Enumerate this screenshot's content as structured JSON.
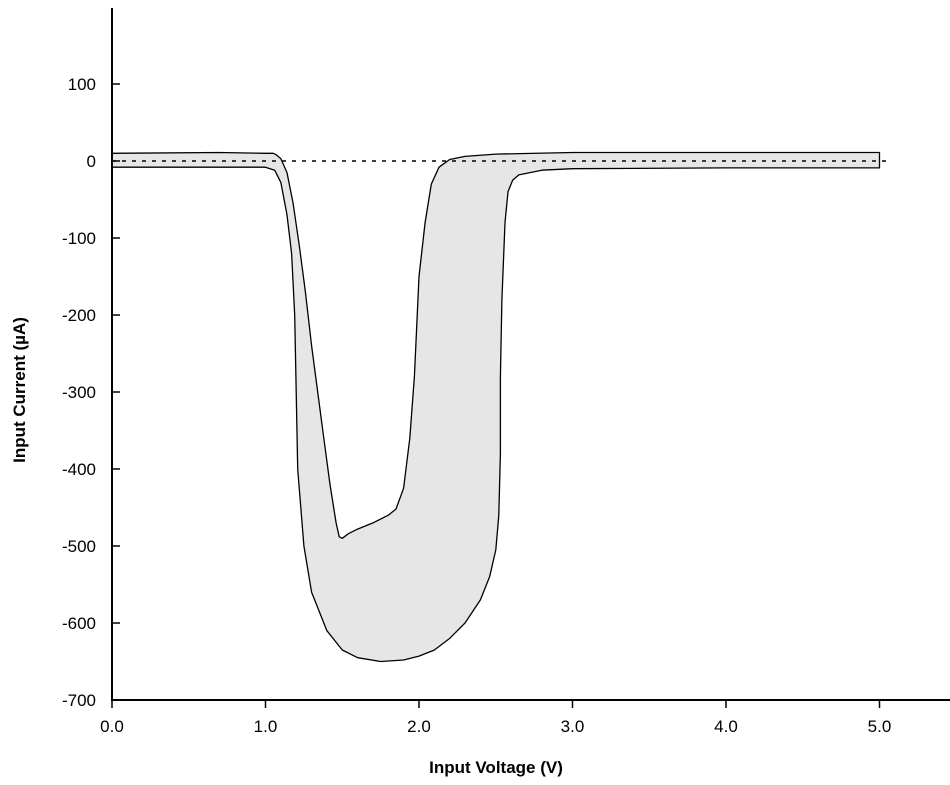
{
  "chart_data": {
    "type": "area",
    "title": "",
    "xlabel": "Input Voltage (V)",
    "ylabel": "Input Current (µA)",
    "xlim": [
      0,
      5.2
    ],
    "ylim": [
      -700,
      200
    ],
    "x_ticks": [
      {
        "value": 0,
        "label": "0.0"
      },
      {
        "value": 1,
        "label": "1.0"
      },
      {
        "value": 2,
        "label": "2.0"
      },
      {
        "value": 3,
        "label": "3.0"
      },
      {
        "value": 4,
        "label": "4.0"
      },
      {
        "value": 5,
        "label": "5.0"
      }
    ],
    "y_ticks": [
      {
        "value": 100,
        "label": "100"
      },
      {
        "value": 0,
        "label": "0"
      },
      {
        "value": -100,
        "label": "-100"
      },
      {
        "value": -200,
        "label": "-200"
      },
      {
        "value": -300,
        "label": "-300"
      },
      {
        "value": -400,
        "label": "-400"
      },
      {
        "value": -500,
        "label": "-500"
      },
      {
        "value": -600,
        "label": "-600"
      },
      {
        "value": -700,
        "label": "-700"
      }
    ],
    "grid": false,
    "reference_line": {
      "y": 0,
      "x_start": 0,
      "x_end": 5.05,
      "style": "dotted"
    },
    "fill_color": "#e6e6e6",
    "line_color": "#000000",
    "envelope": {
      "upper": [
        [
          0,
          10
        ],
        [
          0.7,
          11
        ],
        [
          1.0,
          10
        ],
        [
          1.05,
          10
        ],
        [
          1.07,
          8
        ],
        [
          1.1,
          3
        ],
        [
          1.14,
          -15
        ],
        [
          1.18,
          -55
        ],
        [
          1.22,
          -110
        ],
        [
          1.26,
          -170
        ],
        [
          1.3,
          -240
        ],
        [
          1.34,
          -300
        ],
        [
          1.38,
          -360
        ],
        [
          1.42,
          -420
        ],
        [
          1.46,
          -470
        ],
        [
          1.48,
          -488
        ],
        [
          1.5,
          -490
        ],
        [
          1.54,
          -484
        ],
        [
          1.6,
          -478
        ],
        [
          1.7,
          -470
        ],
        [
          1.8,
          -460
        ],
        [
          1.85,
          -452
        ],
        [
          1.9,
          -425
        ],
        [
          1.94,
          -360
        ],
        [
          1.97,
          -280
        ],
        [
          2.0,
          -150
        ],
        [
          2.04,
          -80
        ],
        [
          2.08,
          -30
        ],
        [
          2.13,
          -8
        ],
        [
          2.2,
          2
        ],
        [
          2.3,
          6
        ],
        [
          2.5,
          9
        ],
        [
          3.0,
          11
        ],
        [
          4.0,
          11
        ],
        [
          5.0,
          11
        ]
      ],
      "lower": [
        [
          0,
          -8
        ],
        [
          1.0,
          -8
        ],
        [
          1.06,
          -12
        ],
        [
          1.1,
          -28
        ],
        [
          1.14,
          -70
        ],
        [
          1.17,
          -120
        ],
        [
          1.19,
          -200
        ],
        [
          1.2,
          -300
        ],
        [
          1.21,
          -400
        ],
        [
          1.23,
          -450
        ],
        [
          1.25,
          -500
        ],
        [
          1.3,
          -560
        ],
        [
          1.4,
          -610
        ],
        [
          1.5,
          -635
        ],
        [
          1.6,
          -645
        ],
        [
          1.75,
          -650
        ],
        [
          1.9,
          -648
        ],
        [
          2.0,
          -643
        ],
        [
          2.1,
          -635
        ],
        [
          2.2,
          -620
        ],
        [
          2.3,
          -600
        ],
        [
          2.4,
          -570
        ],
        [
          2.46,
          -540
        ],
        [
          2.5,
          -505
        ],
        [
          2.52,
          -460
        ],
        [
          2.53,
          -380
        ],
        [
          2.53,
          -280
        ],
        [
          2.54,
          -180
        ],
        [
          2.56,
          -80
        ],
        [
          2.58,
          -40
        ],
        [
          2.61,
          -25
        ],
        [
          2.65,
          -18
        ],
        [
          2.8,
          -12
        ],
        [
          3.0,
          -10
        ],
        [
          4.0,
          -9
        ],
        [
          5.0,
          -9
        ]
      ]
    }
  }
}
